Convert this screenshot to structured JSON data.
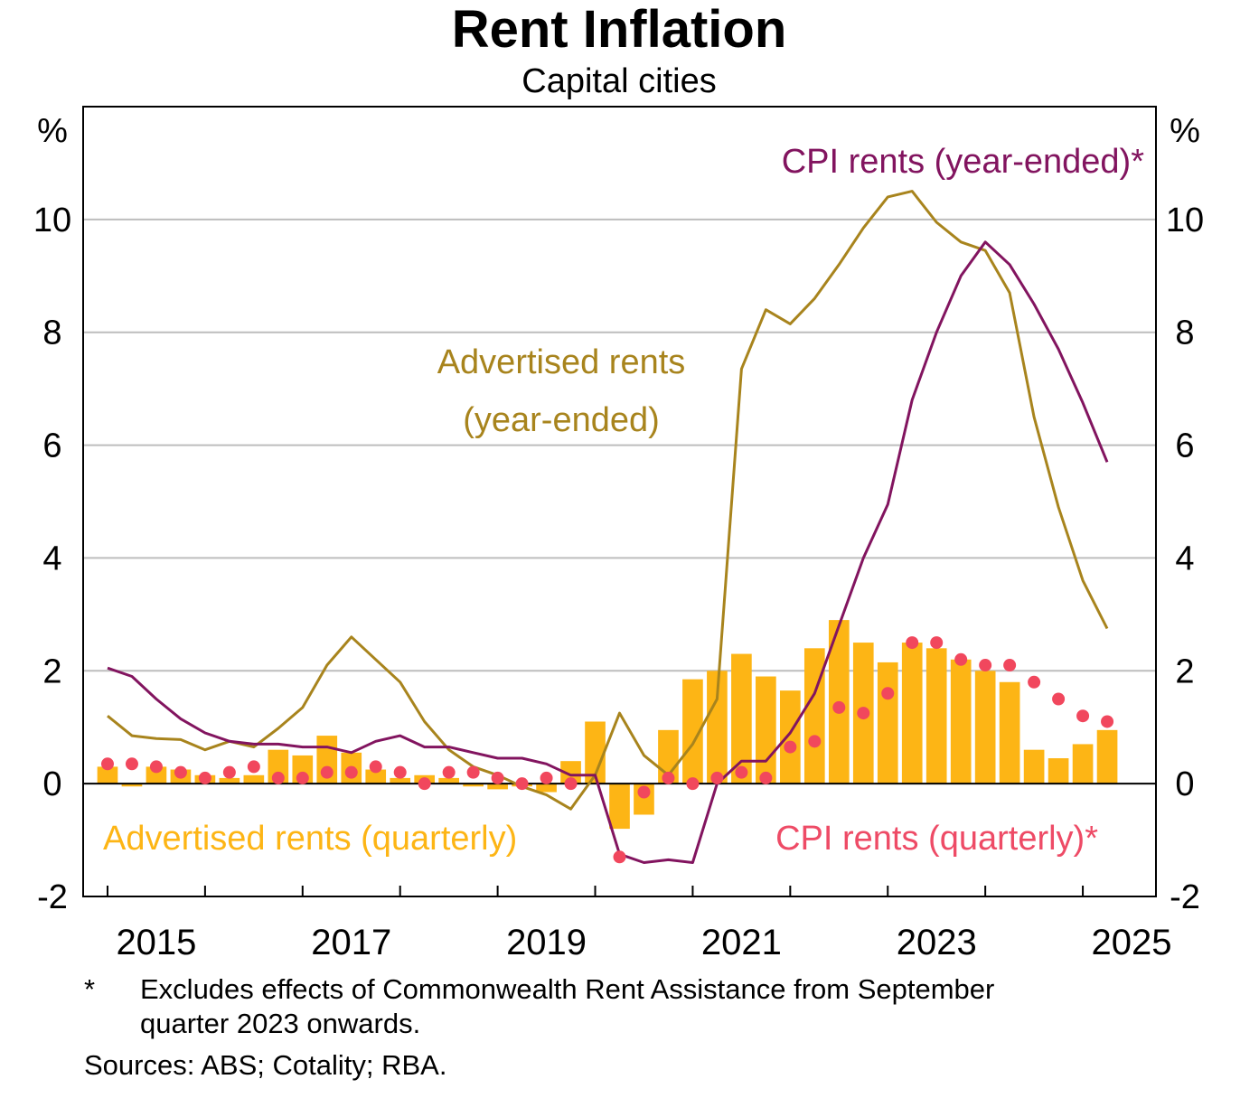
{
  "chart_data": {
    "type": "bar",
    "title": "Rent Inflation",
    "subtitle": "Capital cities",
    "y_unit_left": "%",
    "y_unit_right": "%",
    "ylim": [
      -2,
      12
    ],
    "yticks": [
      -2,
      0,
      2,
      4,
      6,
      8,
      10
    ],
    "ytick_labels": [
      "-2",
      "0",
      "2",
      "4",
      "6",
      "8",
      "10"
    ],
    "grid": true,
    "x_start": 2014.75,
    "x_end": 2025.75,
    "year_ticks": [
      2015,
      2016,
      2017,
      2018,
      2019,
      2020,
      2021,
      2022,
      2023,
      2024,
      2025
    ],
    "year_labels": [
      {
        "year": 2015,
        "label": "2015"
      },
      {
        "year": 2017,
        "label": "2017"
      },
      {
        "year": 2019,
        "label": "2019"
      },
      {
        "year": 2021,
        "label": "2021"
      },
      {
        "year": 2023,
        "label": "2023"
      },
      {
        "year": 2025,
        "label": "2025"
      }
    ],
    "series": [
      {
        "name": "Advertised rents (quarterly)",
        "kind": "bar",
        "color": "#FDB515",
        "label_color": "#FDB515",
        "start": 2015.0,
        "step": 0.25,
        "values": [
          0.3,
          -0.05,
          0.3,
          0.25,
          0.15,
          0.1,
          0.15,
          0.6,
          0.5,
          0.85,
          0.55,
          0.25,
          0.1,
          0.15,
          0.1,
          -0.05,
          -0.1,
          -0.05,
          -0.15,
          0.4,
          1.1,
          -0.8,
          -0.55,
          0.95,
          1.85,
          2.0,
          2.3,
          1.9,
          1.65,
          2.4,
          2.9,
          2.5,
          2.15,
          2.5,
          2.4,
          2.2,
          2.0,
          1.8,
          0.6,
          0.45,
          0.7,
          0.95
        ]
      },
      {
        "name": "CPI rents (quarterly)*",
        "kind": "scatter",
        "color": "#F1475D",
        "label_color": "#EE4B66",
        "start": 2015.0,
        "step": 0.25,
        "values": [
          0.35,
          0.35,
          0.3,
          0.2,
          0.1,
          0.2,
          0.3,
          0.1,
          0.1,
          0.2,
          0.2,
          0.3,
          0.2,
          0.0,
          0.2,
          0.2,
          0.1,
          0.0,
          0.1,
          0.0,
          null,
          -1.3,
          -0.15,
          0.1,
          0.0,
          0.1,
          0.2,
          0.1,
          0.65,
          0.75,
          1.35,
          1.25,
          1.6,
          2.5,
          2.5,
          2.2,
          2.1,
          2.1,
          1.8,
          1.5,
          1.2,
          1.1
        ]
      },
      {
        "name": "Advertised rents (year-ended)",
        "kind": "line",
        "color": "#A8841D",
        "label_color": "#A8841D",
        "label_lines": [
          "Advertised rents",
          "(year-ended)"
        ],
        "start": 2015.0,
        "step": 0.25,
        "values": [
          1.2,
          0.85,
          0.8,
          0.78,
          0.6,
          0.75,
          0.65,
          0.98,
          1.35,
          2.1,
          2.6,
          2.2,
          1.8,
          1.1,
          0.6,
          0.3,
          0.15,
          -0.05,
          -0.2,
          -0.45,
          0.15,
          1.25,
          0.5,
          0.15,
          0.7,
          1.5,
          7.35,
          8.4,
          8.15,
          8.6,
          9.2,
          9.85,
          10.4,
          10.5,
          9.95,
          9.6,
          9.45,
          8.7,
          6.5,
          4.9,
          3.6,
          2.75
        ]
      },
      {
        "name": "CPI rents (year-ended)*",
        "kind": "line",
        "color": "#82145F",
        "label_color": "#82145F",
        "start": 2015.0,
        "step": 0.25,
        "values": [
          2.05,
          1.9,
          1.5,
          1.15,
          0.9,
          0.75,
          0.7,
          0.7,
          0.65,
          0.65,
          0.55,
          0.75,
          0.85,
          0.65,
          0.65,
          0.55,
          0.45,
          0.45,
          0.35,
          0.15,
          0.15,
          -1.25,
          -1.4,
          -1.35,
          -1.4,
          0.0,
          0.4,
          0.4,
          0.9,
          1.6,
          2.8,
          4.0,
          4.95,
          6.8,
          8.0,
          9.0,
          9.6,
          9.2,
          8.5,
          7.7,
          6.75,
          5.7
        ]
      }
    ]
  },
  "footnote": {
    "marker": "*",
    "text_line1": "Excludes effects of Commonwealth Rent Assistance from September",
    "text_line2": "quarter 2023 onwards.",
    "sources": "Sources:  ABS; Cotality; RBA."
  }
}
